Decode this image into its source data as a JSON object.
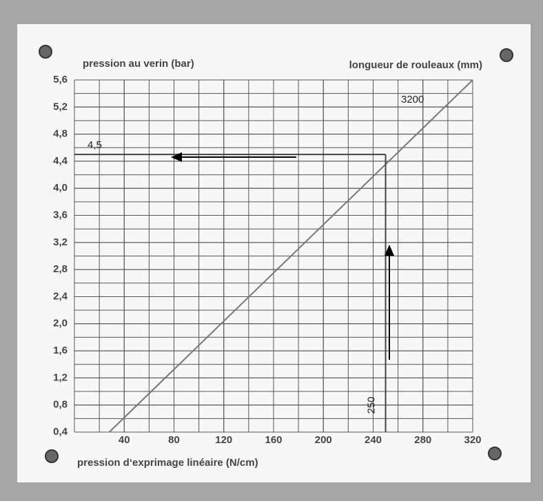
{
  "chart_data": {
    "type": "line",
    "y_label": "pression au verin (bar)",
    "series_title": "longueur de rouleaux (mm)",
    "x_label": "pression d‘exprimage linéaire (N/cm)",
    "x": [
      28,
      320
    ],
    "series": [
      {
        "name": "3200",
        "color": "#777777",
        "values": [
          0.4,
          5.6
        ]
      }
    ],
    "xlim": [
      0,
      320
    ],
    "xticks": [
      40,
      80,
      120,
      160,
      200,
      240,
      280,
      320
    ],
    "ylim": [
      0.4,
      5.6
    ],
    "yticks": [
      {
        "value": 0.4,
        "label": "0,4"
      },
      {
        "value": 0.8,
        "label": "0,8"
      },
      {
        "value": 1.2,
        "label": "1,2"
      },
      {
        "value": 1.6,
        "label": "1,6"
      },
      {
        "value": 2.0,
        "label": "2,0"
      },
      {
        "value": 2.4,
        "label": "2,4"
      },
      {
        "value": 2.8,
        "label": "2,8"
      },
      {
        "value": 3.2,
        "label": "3,2"
      },
      {
        "value": 3.6,
        "label": "3,6"
      },
      {
        "value": 4.0,
        "label": "4,0"
      },
      {
        "value": 4.4,
        "label": "4,4"
      },
      {
        "value": 4.8,
        "label": "4,8"
      },
      {
        "value": 5.2,
        "label": "5,2"
      },
      {
        "value": 5.6,
        "label": "5,6"
      }
    ],
    "grid": true,
    "guide": {
      "x": 250,
      "y": 4.5,
      "x_label": "250",
      "y_label": "4,5"
    }
  }
}
